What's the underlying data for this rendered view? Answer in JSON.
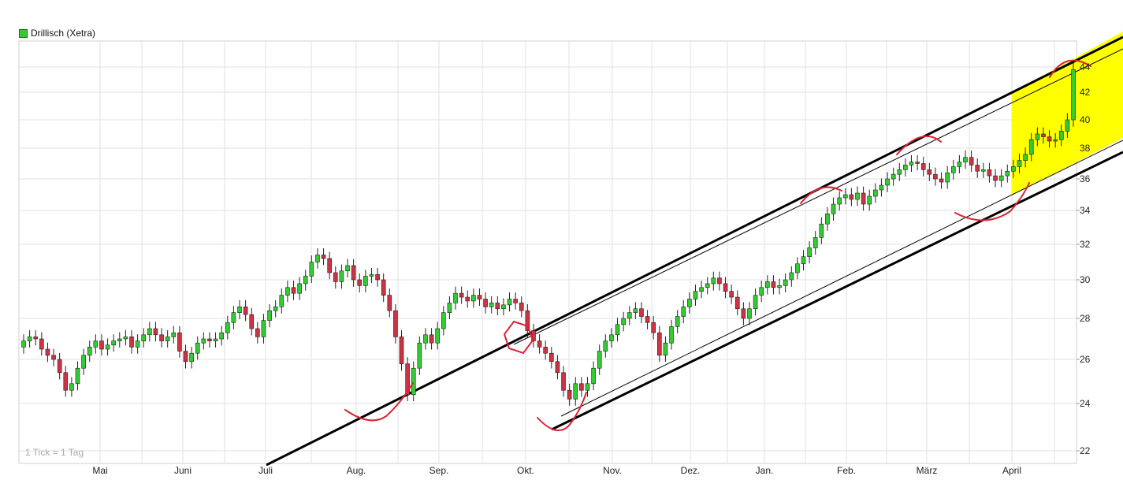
{
  "legend": {
    "label": "Drillisch (Xetra)",
    "color": "#33cc33"
  },
  "footnote": "1 Tick = 1 Tag",
  "colors": {
    "up": "#33cc33",
    "down": "#cc3344",
    "grid": "#e2e2e2",
    "channel_fill": "#ffff00",
    "markup": "#dd2233"
  },
  "chart_data": {
    "type": "candlestick",
    "series_name": "Drillisch (Xetra)",
    "y_axis": {
      "position": "right",
      "scale": "log",
      "ylim": [
        21.5,
        46
      ],
      "ticks": [
        22,
        24,
        26,
        28,
        30,
        32,
        34,
        36,
        38,
        40,
        42,
        44
      ]
    },
    "x_axis": {
      "labels": [
        "Mai",
        "Juni",
        "Juli",
        "Aug.",
        "Sep.",
        "Okt.",
        "Nov.",
        "Dez.",
        "Jan.",
        "Feb.",
        "März",
        "April"
      ]
    },
    "grid": true,
    "legend_position": "top-left",
    "closes": [
      26.9,
      27.1,
      27.0,
      26.5,
      26.2,
      26.0,
      25.4,
      24.6,
      24.9,
      25.6,
      26.2,
      26.6,
      26.9,
      26.5,
      26.7,
      26.9,
      27.0,
      27.1,
      26.6,
      26.9,
      27.2,
      27.5,
      27.2,
      26.9,
      27.1,
      27.3,
      26.4,
      25.9,
      26.3,
      26.8,
      27.0,
      26.9,
      27.0,
      27.3,
      27.8,
      28.3,
      28.6,
      28.2,
      27.5,
      27.1,
      27.9,
      28.4,
      28.6,
      29.2,
      29.6,
      29.3,
      29.8,
      30.2,
      31.0,
      31.4,
      31.2,
      30.4,
      29.9,
      30.5,
      30.8,
      30.0,
      29.7,
      30.2,
      30.3,
      30.0,
      29.2,
      28.4,
      27.1,
      25.8,
      24.4,
      25.6,
      26.8,
      27.2,
      26.8,
      27.5,
      28.3,
      28.8,
      29.3,
      29.1,
      28.9,
      29.2,
      29.0,
      28.6,
      28.8,
      28.5,
      28.7,
      29.0,
      28.8,
      28.4,
      27.4,
      26.9,
      26.6,
      26.3,
      25.9,
      25.4,
      24.6,
      24.2,
      24.9,
      24.6,
      24.9,
      25.6,
      26.4,
      26.9,
      27.2,
      27.7,
      28.0,
      28.3,
      28.5,
      28.1,
      27.8,
      27.3,
      26.2,
      26.8,
      27.6,
      28.1,
      28.6,
      29.0,
      29.4,
      29.6,
      29.8,
      30.1,
      29.8,
      29.4,
      29.1,
      28.5,
      28.0,
      28.5,
      29.2,
      29.6,
      29.9,
      29.6,
      29.7,
      30.0,
      30.4,
      30.9,
      31.3,
      31.8,
      32.4,
      33.2,
      33.8,
      34.4,
      34.8,
      35.0,
      34.7,
      35.1,
      34.4,
      34.9,
      35.3,
      35.6,
      36.0,
      36.3,
      36.6,
      36.9,
      37.1,
      37.0,
      36.6,
      36.3,
      36.0,
      35.8,
      36.4,
      36.8,
      37.1,
      37.4,
      36.9,
      36.5,
      36.6,
      36.2,
      35.9,
      36.2,
      36.5,
      36.8,
      37.2,
      37.6,
      38.6,
      39.0,
      38.8,
      38.5,
      38.6,
      39.2,
      40.0,
      43.8
    ],
    "annotations": [
      "upper trend channel lines",
      "lower trend channel lines",
      "highlighted channel zone",
      "hand-drawn turning-point marks",
      "hexagon breakout mark"
    ]
  }
}
